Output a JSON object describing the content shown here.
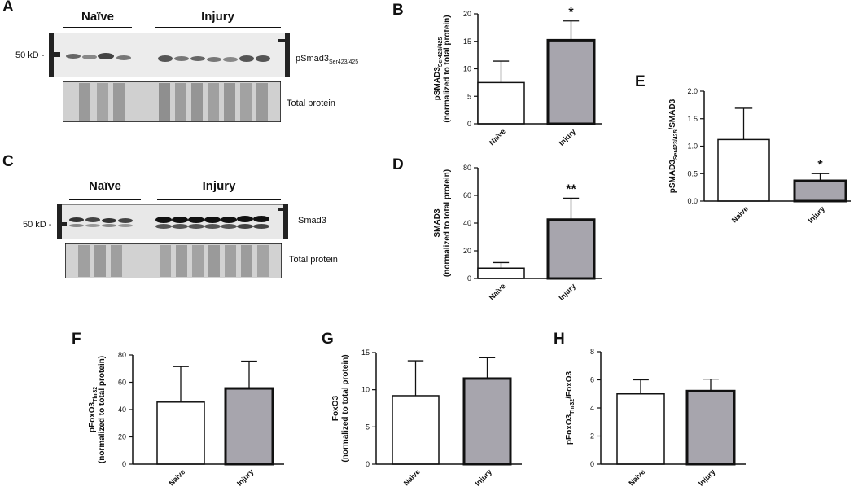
{
  "panels": {
    "A": {
      "letter": "A",
      "mw_label": "50 kD -",
      "group_naive": "Naïve",
      "group_injury": "Injury",
      "band_label": "pSmad3",
      "band_label_sub": "Ser423/425",
      "total_label": "Total protein"
    },
    "C": {
      "letter": "C",
      "mw_label": "50 kD -",
      "group_naive": "Naïve",
      "group_injury": "Injury",
      "band_label": "Smad3",
      "total_label": "Total protein"
    }
  },
  "chart_data": [
    {
      "id": "B",
      "letter": "B",
      "type": "bar",
      "categories": [
        "Naive",
        "Injury"
      ],
      "values": [
        7.5,
        15.2
      ],
      "errors": [
        3.9,
        3.5
      ],
      "colors": [
        "#ffffff",
        "#a7a5ad"
      ],
      "ylim": [
        0,
        20
      ],
      "yticks": [
        "0",
        "5",
        "10",
        "15",
        "20"
      ],
      "ylabel_line1": "pSMAD3",
      "ylabel_sub": "Ser423/425",
      "ylabel_line2": "(normalized to total protein)",
      "significance": [
        "",
        "*"
      ]
    },
    {
      "id": "D",
      "letter": "D",
      "type": "bar",
      "categories": [
        "Naive",
        "Injury"
      ],
      "values": [
        7.5,
        42.5
      ],
      "errors": [
        4,
        15.5
      ],
      "colors": [
        "#ffffff",
        "#a7a5ad"
      ],
      "ylim": [
        0,
        80
      ],
      "yticks": [
        "0",
        "20",
        "40",
        "60",
        "80"
      ],
      "ylabel_line1": "SMAD3",
      "ylabel_sub": "",
      "ylabel_line2": "(normalized to total protein)",
      "significance": [
        "",
        "**"
      ]
    },
    {
      "id": "E",
      "letter": "E",
      "type": "bar",
      "categories": [
        "Naive",
        "Injury"
      ],
      "values": [
        1.12,
        0.37
      ],
      "errors": [
        0.57,
        0.13
      ],
      "colors": [
        "#ffffff",
        "#a7a5ad"
      ],
      "ylim": [
        0,
        2
      ],
      "yticks": [
        "0.0",
        "0.5",
        "1.0",
        "1.5",
        "2.0"
      ],
      "ylabel_line1": "pSMAD3",
      "ylabel_sub": "Ser423/425",
      "ylabel_tail": "/SMAD3",
      "ylabel_line2": "",
      "significance": [
        "",
        "*"
      ]
    },
    {
      "id": "F",
      "letter": "F",
      "type": "bar",
      "categories": [
        "Naive",
        "Injury"
      ],
      "values": [
        45.5,
        55.5
      ],
      "errors": [
        26,
        20
      ],
      "colors": [
        "#ffffff",
        "#a7a5ad"
      ],
      "ylim": [
        0,
        80
      ],
      "yticks": [
        "0",
        "20",
        "40",
        "60",
        "80"
      ],
      "ylabel_line1": "pFoxO3",
      "ylabel_sub": "Thr32",
      "ylabel_line2": "(normalized to total protein)",
      "significance": [
        "",
        ""
      ]
    },
    {
      "id": "G",
      "letter": "G",
      "type": "bar",
      "categories": [
        "Naive",
        "Injury"
      ],
      "values": [
        9.2,
        11.5
      ],
      "errors": [
        4.7,
        2.8
      ],
      "colors": [
        "#ffffff",
        "#a7a5ad"
      ],
      "ylim": [
        0,
        15
      ],
      "yticks": [
        "0",
        "5",
        "10",
        "15"
      ],
      "ylabel_line1": "FoxO3",
      "ylabel_sub": "",
      "ylabel_line2": "(normalized to total protein)",
      "significance": [
        "",
        ""
      ]
    },
    {
      "id": "H",
      "letter": "H",
      "type": "bar",
      "categories": [
        "Naive",
        "Injury"
      ],
      "values": [
        5.0,
        5.2
      ],
      "errors": [
        1.0,
        0.85
      ],
      "colors": [
        "#ffffff",
        "#a7a5ad"
      ],
      "ylim": [
        0,
        8
      ],
      "yticks": [
        "0",
        "2",
        "4",
        "6",
        "8"
      ],
      "ylabel_line1": "pFoxO3",
      "ylabel_sub": "Thr32",
      "ylabel_tail": "/FoxO3",
      "ylabel_line2": "",
      "significance": [
        "",
        ""
      ]
    }
  ]
}
